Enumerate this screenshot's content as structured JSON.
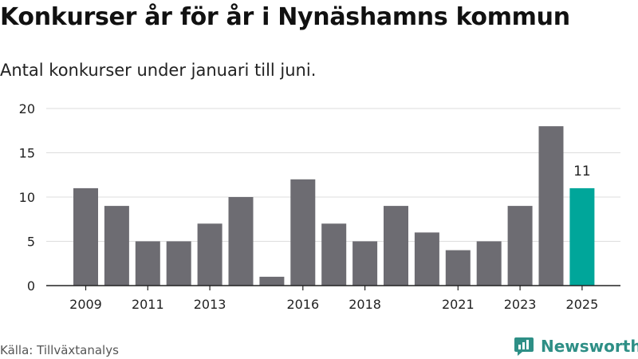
{
  "header": {
    "title": "Konkurser år för år i Nynäshamns kommun",
    "subtitle": "Antal konkurser under januari till juni."
  },
  "footer": {
    "source": "Källa: Tillväxtanalys",
    "brand": "Newsworthy"
  },
  "colors": {
    "bar": "#6d6c72",
    "highlight": "#00a69a",
    "grid": "#dddddd",
    "axis": "#222222",
    "brand": "#2e8f86"
  },
  "chart_data": {
    "type": "bar",
    "categories": [
      "2009",
      "2010",
      "2011",
      "2012",
      "2013",
      "2014",
      "2015",
      "2016",
      "2017",
      "2018",
      "2019",
      "2020",
      "2021",
      "2022",
      "2023",
      "2024",
      "2025"
    ],
    "values": [
      11,
      9,
      5,
      5,
      7,
      10,
      1,
      12,
      7,
      5,
      9,
      6,
      4,
      5,
      9,
      18,
      11
    ],
    "tick_labels": [
      "2009",
      "2011",
      "2013",
      "2016",
      "2018",
      "2021",
      "2023",
      "2025"
    ],
    "ylim": [
      0,
      20
    ],
    "yticks": [
      0,
      5,
      10,
      15,
      20
    ],
    "grid": true,
    "highlight_category": "2025",
    "data_labels": [
      {
        "category": "2025",
        "text": "11"
      }
    ]
  }
}
